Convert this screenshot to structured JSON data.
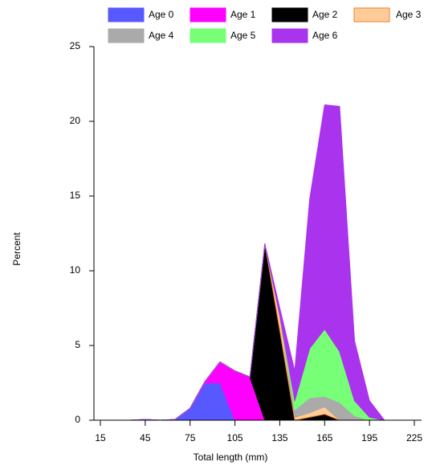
{
  "chart_data": {
    "type": "stacked-area",
    "x_label": "Total length (mm)",
    "y_label": "Percent",
    "x": [
      15,
      25,
      35,
      45,
      55,
      65,
      75,
      85,
      95,
      105,
      115,
      125,
      135,
      145,
      155,
      165,
      175,
      185,
      195,
      205,
      215,
      225
    ],
    "xlim": [
      15,
      225
    ],
    "xticks": [
      15,
      45,
      75,
      105,
      135,
      165,
      195,
      225
    ],
    "ylim": [
      0,
      25
    ],
    "yticks": [
      0,
      5,
      10,
      15,
      20,
      25
    ],
    "series": [
      {
        "name": "Age 0",
        "color": "#5858ff",
        "values": [
          0,
          0,
          0,
          0.05,
          0,
          0.05,
          0.8,
          2.5,
          2.5,
          0,
          0,
          0,
          0,
          0,
          0,
          0,
          0,
          0,
          0,
          0,
          0,
          0
        ]
      },
      {
        "name": "Age 1",
        "color": "#ff00ff",
        "values": [
          0,
          0,
          0,
          0,
          0,
          0,
          0,
          0.1,
          1.4,
          3.3,
          2.9,
          0,
          0,
          0,
          0,
          0,
          0,
          0,
          0,
          0,
          0,
          0
        ]
      },
      {
        "name": "Age 2",
        "color": "#000000",
        "values": [
          0,
          0,
          0,
          0,
          0,
          0,
          0,
          0,
          0,
          0,
          0,
          11.8,
          6.0,
          0,
          0.2,
          0.4,
          0,
          0,
          0,
          0,
          0,
          0
        ]
      },
      {
        "name": "Age 3",
        "color": "#ffcc99",
        "values": [
          0,
          0,
          0,
          0,
          0,
          0,
          0,
          0,
          0,
          0,
          0,
          0,
          1.0,
          0.2,
          0.3,
          0.5,
          0,
          0,
          0,
          0,
          0,
          0
        ]
      },
      {
        "name": "Age 4",
        "color": "#aaaaaa",
        "values": [
          0,
          0,
          0,
          0,
          0,
          0,
          0,
          0,
          0,
          0,
          0,
          0,
          0,
          0.5,
          1.0,
          0.7,
          1.2,
          0.3,
          0,
          0,
          0,
          0
        ]
      },
      {
        "name": "Age 5",
        "color": "#77ff77",
        "values": [
          0,
          0,
          0,
          0,
          0,
          0,
          0,
          0,
          0,
          0,
          0,
          0,
          0,
          0.6,
          3.3,
          4.5,
          3.4,
          1.0,
          0.2,
          0,
          0,
          0
        ]
      },
      {
        "name": "Age 6",
        "color": "#aa33ee",
        "values": [
          0,
          0,
          0,
          0,
          0,
          0,
          0,
          0,
          0,
          0,
          0,
          0,
          0.5,
          2.0,
          10.0,
          15.0,
          16.4,
          4.0,
          1.1,
          0,
          0,
          0
        ]
      }
    ]
  }
}
